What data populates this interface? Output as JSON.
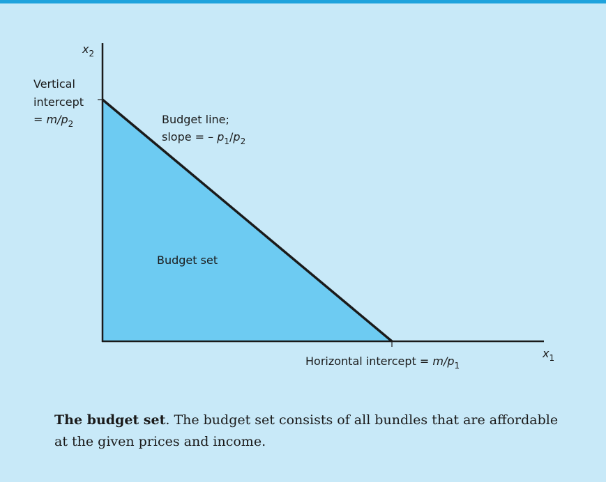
{
  "axes": {
    "y_label": [
      "x",
      "2"
    ],
    "x_label": [
      "x",
      "1"
    ]
  },
  "vertical_intercept": [
    "Vertical",
    "intercept",
    "= ",
    "m/p",
    "2"
  ],
  "budget_line": [
    "Budget line;",
    "slope = – ",
    "p",
    "1",
    "/",
    "p",
    "2"
  ],
  "region_label": "Budget set",
  "horizontal_intercept": [
    "Horizontal intercept = ",
    "m/p",
    "1"
  ],
  "caption": {
    "title": "The budget set",
    "text": ".  The budget set consists of all bundles that are affordable at the given prices and income."
  }
}
